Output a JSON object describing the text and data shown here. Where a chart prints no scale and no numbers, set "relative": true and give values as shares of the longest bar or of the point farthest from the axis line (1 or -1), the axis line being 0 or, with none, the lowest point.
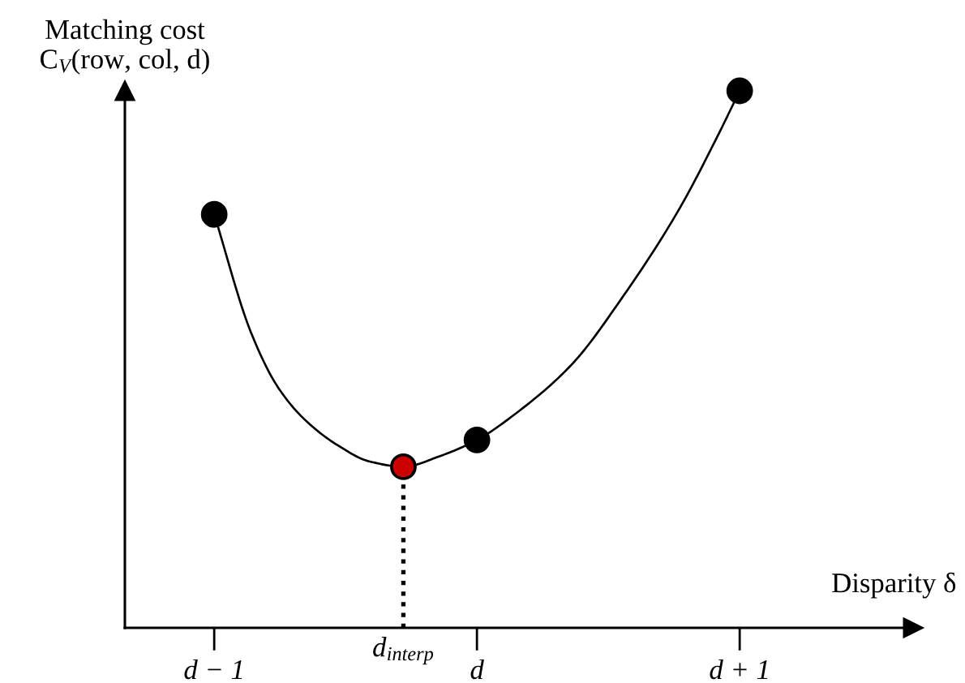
{
  "chart_data": {
    "type": "line",
    "relative": true,
    "ylabel": "Matching cost\nC$_{V}$(row, col, d)",
    "xlabel": "Disparity δ",
    "xlim": [
      -1.34,
      1.66
    ],
    "xticks": [
      {
        "value": -1,
        "label": "d − 1"
      },
      {
        "value": 0,
        "label": "d"
      },
      {
        "value": 1,
        "label": "d + 1"
      }
    ],
    "tick_labels": "x",
    "series": [
      {
        "color": "#000000",
        "marker": "none",
        "line_style": "solid",
        "x": [
          -1.0,
          -0.86,
          -0.76,
          -0.66,
          -0.53,
          -0.41,
          -0.28,
          -0.14,
          0.0,
          0.15,
          0.36,
          0.56,
          0.77,
          0.91,
          1.0
        ],
        "values": [
          0.77,
          0.55,
          0.45,
          0.39,
          0.34,
          0.31,
          0.3,
          0.32,
          0.35,
          0.4,
          0.49,
          0.62,
          0.78,
          0.91,
          1.0
        ]
      },
      {
        "type": "line",
        "color": "#000000",
        "marker": "none",
        "line_style": "dotted",
        "x": [
          -0.28,
          -0.28
        ],
        "values": [
          0,
          0.3
        ]
      },
      {
        "type": "scatter",
        "color": "#000000",
        "marker": "circle",
        "x": [
          -1,
          0,
          1
        ],
        "values": [
          0.77,
          0.35,
          1.0
        ]
      },
      {
        "type": "scatter",
        "color": "#cc0000",
        "marker": "circle",
        "x": [
          -0.28
        ],
        "values": [
          0.3
        ]
      }
    ],
    "annotations": [
      {
        "text": "d$_{interp}$",
        "x": -0.28,
        "y": 0
      }
    ]
  }
}
